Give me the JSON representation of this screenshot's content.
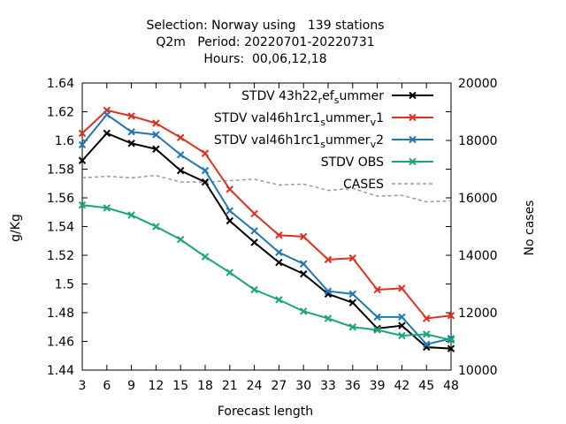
{
  "chart_data": {
    "type": "line",
    "title_lines": [
      "Selection: Norway using   139 stations",
      "Q2m   Period: 20220701-20220731",
      "Hours:  00,06,12,18"
    ],
    "xlabel": "Forecast length",
    "ylabel": "g/Kg",
    "y2label": "No cases",
    "x": [
      3,
      6,
      9,
      12,
      15,
      18,
      21,
      24,
      27,
      30,
      33,
      36,
      39,
      42,
      45,
      48
    ],
    "xticks": [
      "3",
      "6",
      "9",
      "12",
      "15",
      "18",
      "21",
      "24",
      "27",
      "30",
      "33",
      "36",
      "39",
      "42",
      "45",
      "48"
    ],
    "ylim": [
      1.44,
      1.64
    ],
    "yticks": [
      "1.44",
      "1.46",
      "1.48",
      "1.5",
      "1.52",
      "1.54",
      "1.56",
      "1.58",
      "1.6",
      "1.62",
      "1.64"
    ],
    "y2lim": [
      10000,
      20000
    ],
    "y2ticks": [
      "10000",
      "12000",
      "14000",
      "16000",
      "18000",
      "20000"
    ],
    "grid": false,
    "legend_position": "top-right",
    "series": [
      {
        "name": "STDV 43h22",
        "name_suffix": [
          {
            "t": "r",
            "s": "sub"
          },
          {
            "t": "ef",
            "s": "normal"
          },
          {
            "t": "s",
            "s": "sub"
          },
          {
            "t": "ummer",
            "s": "normal"
          }
        ],
        "color": "#000000",
        "marker": "x",
        "axis": "y",
        "values": [
          1.586,
          1.605,
          1.598,
          1.594,
          1.579,
          1.571,
          1.544,
          1.529,
          1.515,
          1.507,
          1.493,
          1.487,
          1.469,
          1.471,
          1.456,
          1.455
        ]
      },
      {
        "name": "STDV val46h1rc1",
        "name_suffix": [
          {
            "t": "s",
            "s": "sub"
          },
          {
            "t": "ummer",
            "s": "normal"
          },
          {
            "t": "v",
            "s": "sub"
          },
          {
            "t": "1",
            "s": "normal"
          }
        ],
        "color": "#e03020",
        "marker": "x",
        "axis": "y",
        "values": [
          1.605,
          1.621,
          1.617,
          1.612,
          1.602,
          1.591,
          1.566,
          1.549,
          1.534,
          1.533,
          1.517,
          1.518,
          1.496,
          1.497,
          1.476,
          1.478
        ]
      },
      {
        "name": "STDV val46h1rc1",
        "name_suffix": [
          {
            "t": "s",
            "s": "sub"
          },
          {
            "t": "ummer",
            "s": "normal"
          },
          {
            "t": "v",
            "s": "sub"
          },
          {
            "t": "2",
            "s": "normal"
          }
        ],
        "color": "#1f78b4",
        "marker": "x",
        "axis": "y",
        "values": [
          1.597,
          1.618,
          1.606,
          1.604,
          1.59,
          1.579,
          1.551,
          1.537,
          1.522,
          1.514,
          1.495,
          1.493,
          1.477,
          1.477,
          1.458,
          1.462
        ]
      },
      {
        "name": "STDV OBS",
        "name_suffix": [],
        "color": "#1aa57a",
        "marker": "x",
        "axis": "y",
        "values": [
          1.555,
          1.553,
          1.548,
          1.54,
          1.531,
          1.519,
          1.508,
          1.496,
          1.489,
          1.481,
          1.476,
          1.47,
          1.468,
          1.464,
          1.465,
          1.461
        ]
      },
      {
        "name": "CASES",
        "name_suffix": [],
        "color": "#999999",
        "marker": "none",
        "dashed": true,
        "axis": "y2",
        "values": [
          16700,
          16750,
          16700,
          16780,
          16550,
          16550,
          16600,
          16650,
          16450,
          16480,
          16260,
          16330,
          16060,
          16090,
          15860,
          15900
        ]
      }
    ]
  }
}
